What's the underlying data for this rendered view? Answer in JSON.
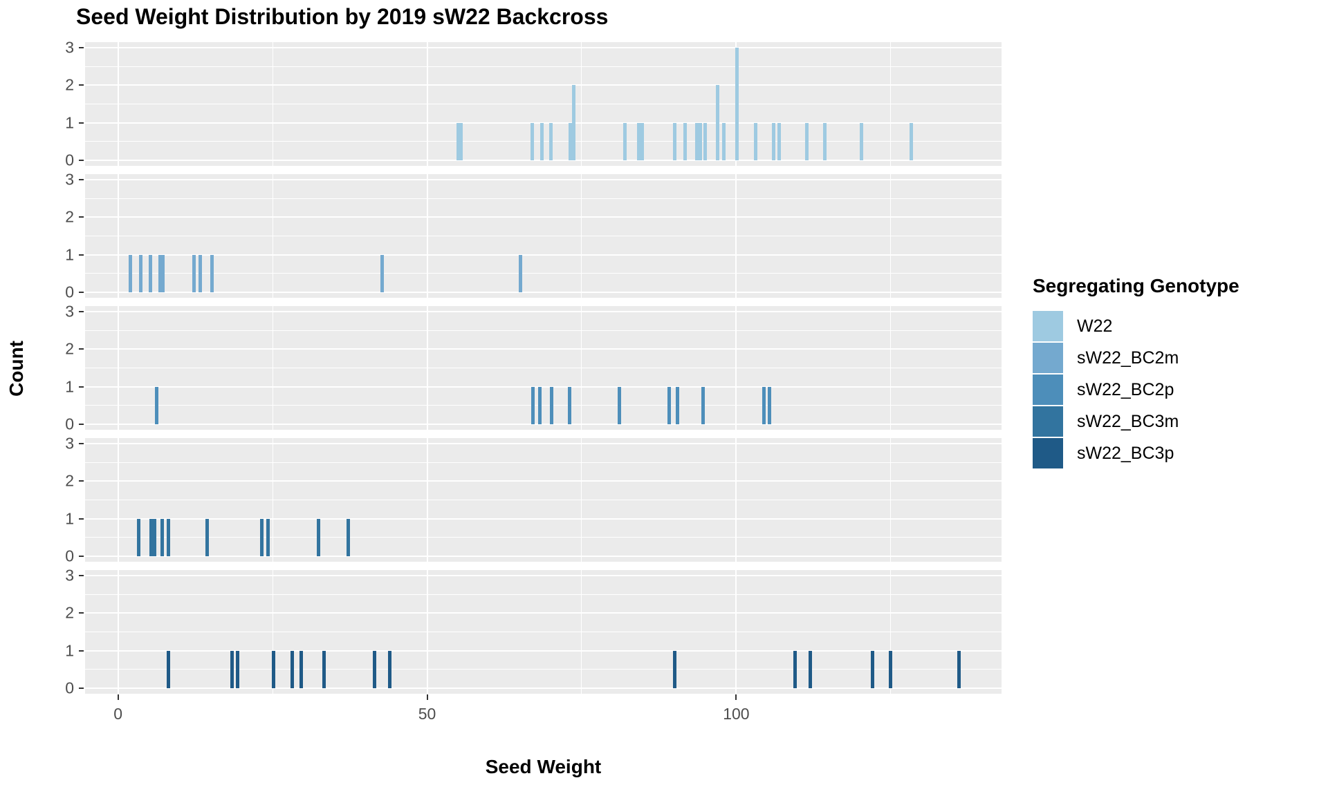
{
  "title": "Seed Weight Distribution by 2019 sW22 Backcross",
  "xlabel": "Seed Weight",
  "ylabel": "Count",
  "legend": {
    "title": "Segregating Genotype"
  },
  "colors": {
    "panel_background": "#EBEBEB",
    "gridline": "#FFFFFF",
    "tick_label": "#4D4D4D",
    "tick_mark": "#333333",
    "text": "#000000"
  },
  "chart_data": {
    "type": "bar",
    "subtype": "faceted-histogram",
    "facet_variable": "Segregating Genotype",
    "title": "Seed Weight Distribution by 2019 sW22 Backcross",
    "xlabel": "Seed Weight",
    "ylabel": "Count",
    "x_ticks": [
      0,
      50,
      100
    ],
    "x_minor_gridlines": [
      25,
      75,
      125
    ],
    "y_ticks": [
      0,
      1,
      2,
      3
    ],
    "xlim": [
      -5.3,
      142.9
    ],
    "ylim": [
      0,
      3
    ],
    "binwidth": 0.5,
    "grid": true,
    "legend_position": "right",
    "series": [
      {
        "name": "W22",
        "color": "#9ECAE1",
        "bars": [
          [
            55.0,
            1
          ],
          [
            55.5,
            1
          ],
          [
            67.0,
            1
          ],
          [
            68.6,
            1
          ],
          [
            70.0,
            1
          ],
          [
            73.2,
            1
          ],
          [
            73.7,
            2
          ],
          [
            82.0,
            1
          ],
          [
            84.2,
            1
          ],
          [
            84.8,
            1
          ],
          [
            90.0,
            1
          ],
          [
            91.7,
            1
          ],
          [
            93.6,
            1
          ],
          [
            94.2,
            1
          ],
          [
            95.0,
            1
          ],
          [
            97.0,
            2
          ],
          [
            98.0,
            1
          ],
          [
            100.1,
            3
          ],
          [
            103.1,
            1
          ],
          [
            106.0,
            1
          ],
          [
            106.9,
            1
          ],
          [
            111.4,
            1
          ],
          [
            114.3,
            1
          ],
          [
            120.3,
            1
          ],
          [
            128.3,
            1
          ]
        ]
      },
      {
        "name": "sW22_BC2m",
        "color": "#74A9CF",
        "bars": [
          [
            2.0,
            1
          ],
          [
            3.7,
            1
          ],
          [
            5.2,
            1
          ],
          [
            6.8,
            1
          ],
          [
            7.3,
            1
          ],
          [
            12.3,
            1
          ],
          [
            13.3,
            1
          ],
          [
            15.2,
            1
          ],
          [
            42.7,
            1
          ],
          [
            65.1,
            1
          ]
        ]
      },
      {
        "name": "sW22_BC2p",
        "color": "#4D8EBA",
        "bars": [
          [
            6.2,
            1
          ],
          [
            67.1,
            1
          ],
          [
            68.2,
            1
          ],
          [
            70.1,
            1
          ],
          [
            73.1,
            1
          ],
          [
            81.1,
            1
          ],
          [
            89.2,
            1
          ],
          [
            90.5,
            1
          ],
          [
            94.6,
            1
          ],
          [
            104.5,
            1
          ],
          [
            105.4,
            1
          ]
        ]
      },
      {
        "name": "sW22_BC3m",
        "color": "#32749F",
        "bars": [
          [
            3.3,
            1
          ],
          [
            5.4,
            1
          ],
          [
            5.9,
            1
          ],
          [
            7.2,
            1
          ],
          [
            8.2,
            1
          ],
          [
            14.4,
            1
          ],
          [
            23.3,
            1
          ],
          [
            24.3,
            1
          ],
          [
            32.4,
            1
          ],
          [
            37.2,
            1
          ]
        ]
      },
      {
        "name": "sW22_BC3p",
        "color": "#1F5A87",
        "bars": [
          [
            8.2,
            1
          ],
          [
            18.4,
            1
          ],
          [
            19.4,
            1
          ],
          [
            25.2,
            1
          ],
          [
            28.2,
            1
          ],
          [
            29.6,
            1
          ],
          [
            33.3,
            1
          ],
          [
            41.5,
            1
          ],
          [
            44.0,
            1
          ],
          [
            90.0,
            1
          ],
          [
            109.5,
            1
          ],
          [
            112.0,
            1
          ],
          [
            122.0,
            1
          ],
          [
            125.0,
            1
          ],
          [
            136.0,
            1
          ]
        ]
      }
    ]
  }
}
